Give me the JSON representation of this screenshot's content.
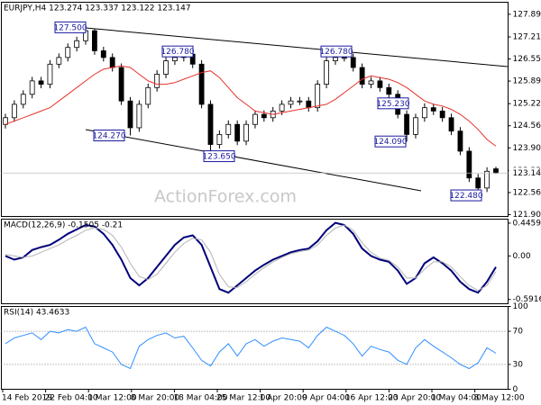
{
  "chart_data": {
    "type": "candlestick",
    "title": "EURJPY,H4 123.274 123.337 123.122 123.147",
    "watermark": "ActionForex.com",
    "x_tick_labels": [
      "14 Feb 2019",
      "22 Feb 04:00",
      "1 Mar 12:00",
      "8 Mar 20:00",
      "18 Mar 04:00",
      "25 Mar 12:00",
      "1 Apr 20:00",
      "9 Apr 04:00",
      "16 Apr 12:00",
      "23 Apr 20:00",
      "1 May 04:00",
      "8 May 12:00"
    ],
    "candles": {
      "open": [
        124.6,
        124.8,
        125.2,
        125.5,
        125.9,
        125.8,
        126.4,
        126.6,
        126.9,
        127.1,
        127.4,
        126.8,
        126.6,
        126.3,
        125.3,
        124.5,
        125.2,
        125.7,
        126.1,
        126.5,
        126.6,
        126.7,
        126.4,
        125.2,
        124.0,
        124.3,
        124.6,
        124.1,
        124.6,
        124.9,
        124.8,
        125.0,
        125.2,
        125.3,
        125.3,
        125.1,
        125.8,
        126.5,
        126.6,
        126.6,
        126.3,
        125.8,
        125.9,
        125.7,
        125.5,
        124.9,
        124.3,
        124.8,
        125.1,
        125.0,
        124.8,
        124.4,
        123.8,
        123.0,
        122.7,
        123.274
      ],
      "high": [
        124.92,
        125.32,
        125.62,
        126.02,
        126.02,
        126.52,
        126.72,
        127.02,
        127.22,
        127.5,
        127.45,
        126.92,
        126.72,
        126.42,
        125.42,
        125.32,
        125.82,
        126.22,
        126.62,
        126.72,
        126.78,
        126.75,
        126.52,
        125.32,
        124.42,
        124.72,
        124.72,
        124.72,
        125.02,
        125.02,
        125.12,
        125.32,
        125.42,
        125.42,
        125.42,
        125.92,
        126.62,
        126.78,
        126.72,
        126.72,
        126.42,
        126.02,
        126.02,
        125.82,
        125.62,
        125.02,
        124.92,
        125.23,
        125.22,
        125.12,
        124.92,
        124.52,
        123.92,
        123.12,
        123.32,
        123.337
      ],
      "low": [
        124.48,
        124.68,
        125.08,
        125.38,
        125.68,
        125.68,
        126.28,
        126.48,
        126.78,
        126.98,
        126.68,
        126.48,
        126.18,
        125.18,
        124.27,
        124.38,
        125.08,
        125.58,
        125.98,
        126.38,
        126.48,
        126.28,
        125.08,
        123.65,
        123.88,
        124.18,
        123.98,
        123.98,
        124.48,
        124.68,
        124.68,
        124.88,
        125.08,
        125.18,
        124.98,
        124.98,
        125.68,
        126.38,
        126.48,
        126.18,
        125.68,
        125.68,
        125.58,
        125.38,
        124.78,
        124.09,
        124.18,
        124.68,
        124.88,
        124.68,
        124.28,
        123.68,
        122.88,
        122.48,
        122.58,
        123.122
      ],
      "close": [
        124.8,
        125.2,
        125.5,
        125.9,
        125.8,
        126.4,
        126.6,
        126.9,
        127.1,
        127.4,
        126.8,
        126.6,
        126.3,
        125.3,
        124.5,
        125.2,
        125.7,
        126.1,
        126.5,
        126.6,
        126.7,
        126.4,
        125.2,
        124.0,
        124.3,
        124.6,
        124.1,
        124.6,
        124.9,
        124.8,
        125.0,
        125.2,
        125.3,
        125.3,
        125.1,
        125.8,
        126.5,
        126.6,
        126.6,
        126.3,
        125.8,
        125.9,
        125.7,
        125.5,
        124.9,
        124.3,
        124.8,
        125.1,
        125.0,
        124.8,
        124.4,
        123.8,
        123.0,
        122.7,
        123.2,
        123.147
      ]
    },
    "ma": {
      "color": "#e8322e",
      "values": [
        124.6,
        124.7,
        124.8,
        124.9,
        125.0,
        125.1,
        125.3,
        125.5,
        125.7,
        125.9,
        126.1,
        126.25,
        126.3,
        126.35,
        126.3,
        126.1,
        125.9,
        125.8,
        125.8,
        125.85,
        125.95,
        126.05,
        126.15,
        126.2,
        126.0,
        125.7,
        125.4,
        125.2,
        125.0,
        124.95,
        124.9,
        124.95,
        125.0,
        125.05,
        125.1,
        125.15,
        125.2,
        125.35,
        125.55,
        125.75,
        125.95,
        126.05,
        126.0,
        125.95,
        125.85,
        125.7,
        125.5,
        125.3,
        125.2,
        125.15,
        125.05,
        124.9,
        124.7,
        124.45,
        124.15,
        123.95
      ]
    },
    "ylim": [
      121.85,
      128.25
    ],
    "yticks": [
      {
        "value": 127.89,
        "label": "127.890"
      },
      127.215,
      126.555,
      125.895,
      {
        "value": 125.22,
        "label": "125.220"
      },
      {
        "value": 124.56,
        "label": "124.560"
      },
      {
        "value": 123.9,
        "label": "123.900"
      },
      123.225,
      122.565,
      121.905
    ],
    "annotations": [
      {
        "label": "127.500",
        "value": 127.5
      },
      {
        "label": "126.780",
        "value": 126.78
      },
      {
        "label": "126.780",
        "value": 126.78
      },
      {
        "label": "124.270",
        "value": 124.27
      },
      {
        "label": "123.650",
        "value": 123.65
      },
      {
        "label": "125.230",
        "value": 125.23
      },
      {
        "label": "124.090",
        "value": 124.09
      },
      {
        "label": "122.480",
        "value": 122.48
      }
    ],
    "indicators": [
      {
        "type": "macd",
        "label": "MACD(12,26,9) -0.1505 -0.21",
        "series": [
          {
            "color": "#00007a",
            "values": [
              0.0,
              -0.05,
              -0.02,
              0.08,
              0.12,
              0.15,
              0.22,
              0.3,
              0.36,
              0.42,
              0.4,
              0.3,
              0.15,
              -0.05,
              -0.3,
              -0.4,
              -0.3,
              -0.15,
              0.0,
              0.15,
              0.25,
              0.28,
              0.15,
              -0.15,
              -0.45,
              -0.5,
              -0.4,
              -0.3,
              -0.2,
              -0.12,
              -0.05,
              0.0,
              0.05,
              0.08,
              0.1,
              0.2,
              0.35,
              0.45,
              0.42,
              0.3,
              0.1,
              0.0,
              -0.05,
              -0.08,
              -0.2,
              -0.38,
              -0.3,
              -0.1,
              -0.02,
              -0.1,
              -0.2,
              -0.35,
              -0.45,
              -0.5,
              -0.35,
              -0.1505
            ]
          },
          {
            "color": "#b4b4b4",
            "values": [
              0.02,
              0.0,
              -0.02,
              0.0,
              0.05,
              0.1,
              0.15,
              0.22,
              0.28,
              0.35,
              0.38,
              0.36,
              0.28,
              0.12,
              -0.1,
              -0.28,
              -0.32,
              -0.25,
              -0.1,
              0.05,
              0.17,
              0.24,
              0.22,
              0.05,
              -0.25,
              -0.42,
              -0.43,
              -0.35,
              -0.25,
              -0.16,
              -0.08,
              -0.02,
              0.03,
              0.06,
              0.08,
              0.15,
              0.28,
              0.38,
              0.42,
              0.35,
              0.18,
              0.05,
              -0.03,
              -0.06,
              -0.15,
              -0.3,
              -0.3,
              -0.18,
              -0.08,
              -0.08,
              -0.15,
              -0.28,
              -0.4,
              -0.47,
              -0.4,
              -0.214
            ]
          }
        ],
        "ylim": [
          -0.65,
          0.5
        ],
        "yticks": [
          0.4459,
          {
            "value": 0,
            "label": "0.00"
          },
          -0.5916
        ]
      },
      {
        "type": "rsi",
        "label": "RSI(14) 43.4633",
        "color": "#2f8fff",
        "values": [
          55,
          62,
          65,
          68,
          60,
          70,
          68,
          72,
          70,
          75,
          55,
          50,
          45,
          30,
          25,
          52,
          60,
          65,
          68,
          62,
          64,
          50,
          35,
          28,
          45,
          55,
          40,
          55,
          60,
          52,
          58,
          62,
          60,
          58,
          50,
          65,
          75,
          70,
          65,
          55,
          40,
          52,
          48,
          45,
          35,
          30,
          50,
          60,
          52,
          45,
          38,
          30,
          25,
          32,
          50,
          43.4633
        ],
        "ylim": [
          0,
          100
        ],
        "yticks": [
          100,
          70,
          30,
          0
        ],
        "levels": [
          70,
          30
        ]
      }
    ]
  }
}
